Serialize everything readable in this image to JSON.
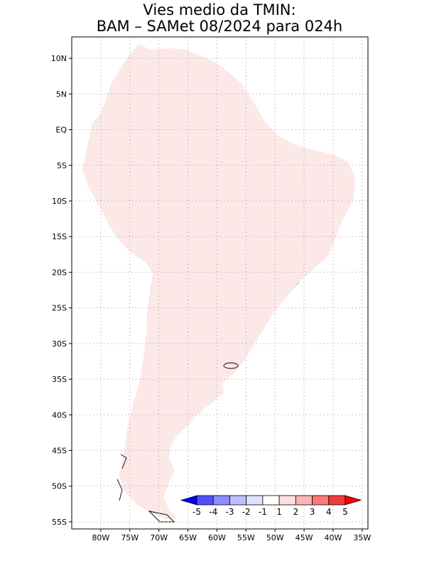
{
  "title": {
    "line1": "Vies medio da TMIN:",
    "line2": "BAM – SAMet 08/2024  para 024h"
  },
  "map": {
    "region": "South America",
    "lon_range": [
      -85,
      -34
    ],
    "lat_range": [
      -56,
      13
    ],
    "lat_ticks": [
      {
        "value": 10,
        "label": "10N"
      },
      {
        "value": 5,
        "label": "5N"
      },
      {
        "value": 0,
        "label": "EQ"
      },
      {
        "value": -5,
        "label": "5S"
      },
      {
        "value": -10,
        "label": "10S"
      },
      {
        "value": -15,
        "label": "15S"
      },
      {
        "value": -20,
        "label": "20S"
      },
      {
        "value": -25,
        "label": "25S"
      },
      {
        "value": -30,
        "label": "30S"
      },
      {
        "value": -35,
        "label": "35S"
      },
      {
        "value": -40,
        "label": "40S"
      },
      {
        "value": -45,
        "label": "45S"
      },
      {
        "value": -50,
        "label": "50S"
      },
      {
        "value": -55,
        "label": "55S"
      }
    ],
    "lon_ticks": [
      {
        "value": -80,
        "label": "80W"
      },
      {
        "value": -75,
        "label": "75W"
      },
      {
        "value": -70,
        "label": "70W"
      },
      {
        "value": -65,
        "label": "65W"
      },
      {
        "value": -60,
        "label": "60W"
      },
      {
        "value": -55,
        "label": "55W"
      },
      {
        "value": -50,
        "label": "50W"
      },
      {
        "value": -45,
        "label": "45W"
      },
      {
        "value": -40,
        "label": "40W"
      },
      {
        "value": -35,
        "label": "35W"
      }
    ],
    "colors": {
      "frame": "#000000",
      "grid": "#9a9a9a",
      "border": "#222222",
      "land_base": "#fde8e8"
    }
  },
  "colorbar": {
    "labels": [
      "-5",
      "-4",
      "-3",
      "-2",
      "-1",
      "1",
      "2",
      "3",
      "4",
      "5"
    ],
    "colors": [
      "#0000ff",
      "#5050ff",
      "#8c8cff",
      "#bfbfff",
      "#e0e0ff",
      "#ffffff",
      "#ffe0e0",
      "#ffb4b4",
      "#ff7878",
      "#f03c3c",
      "#ff0000"
    ]
  }
}
